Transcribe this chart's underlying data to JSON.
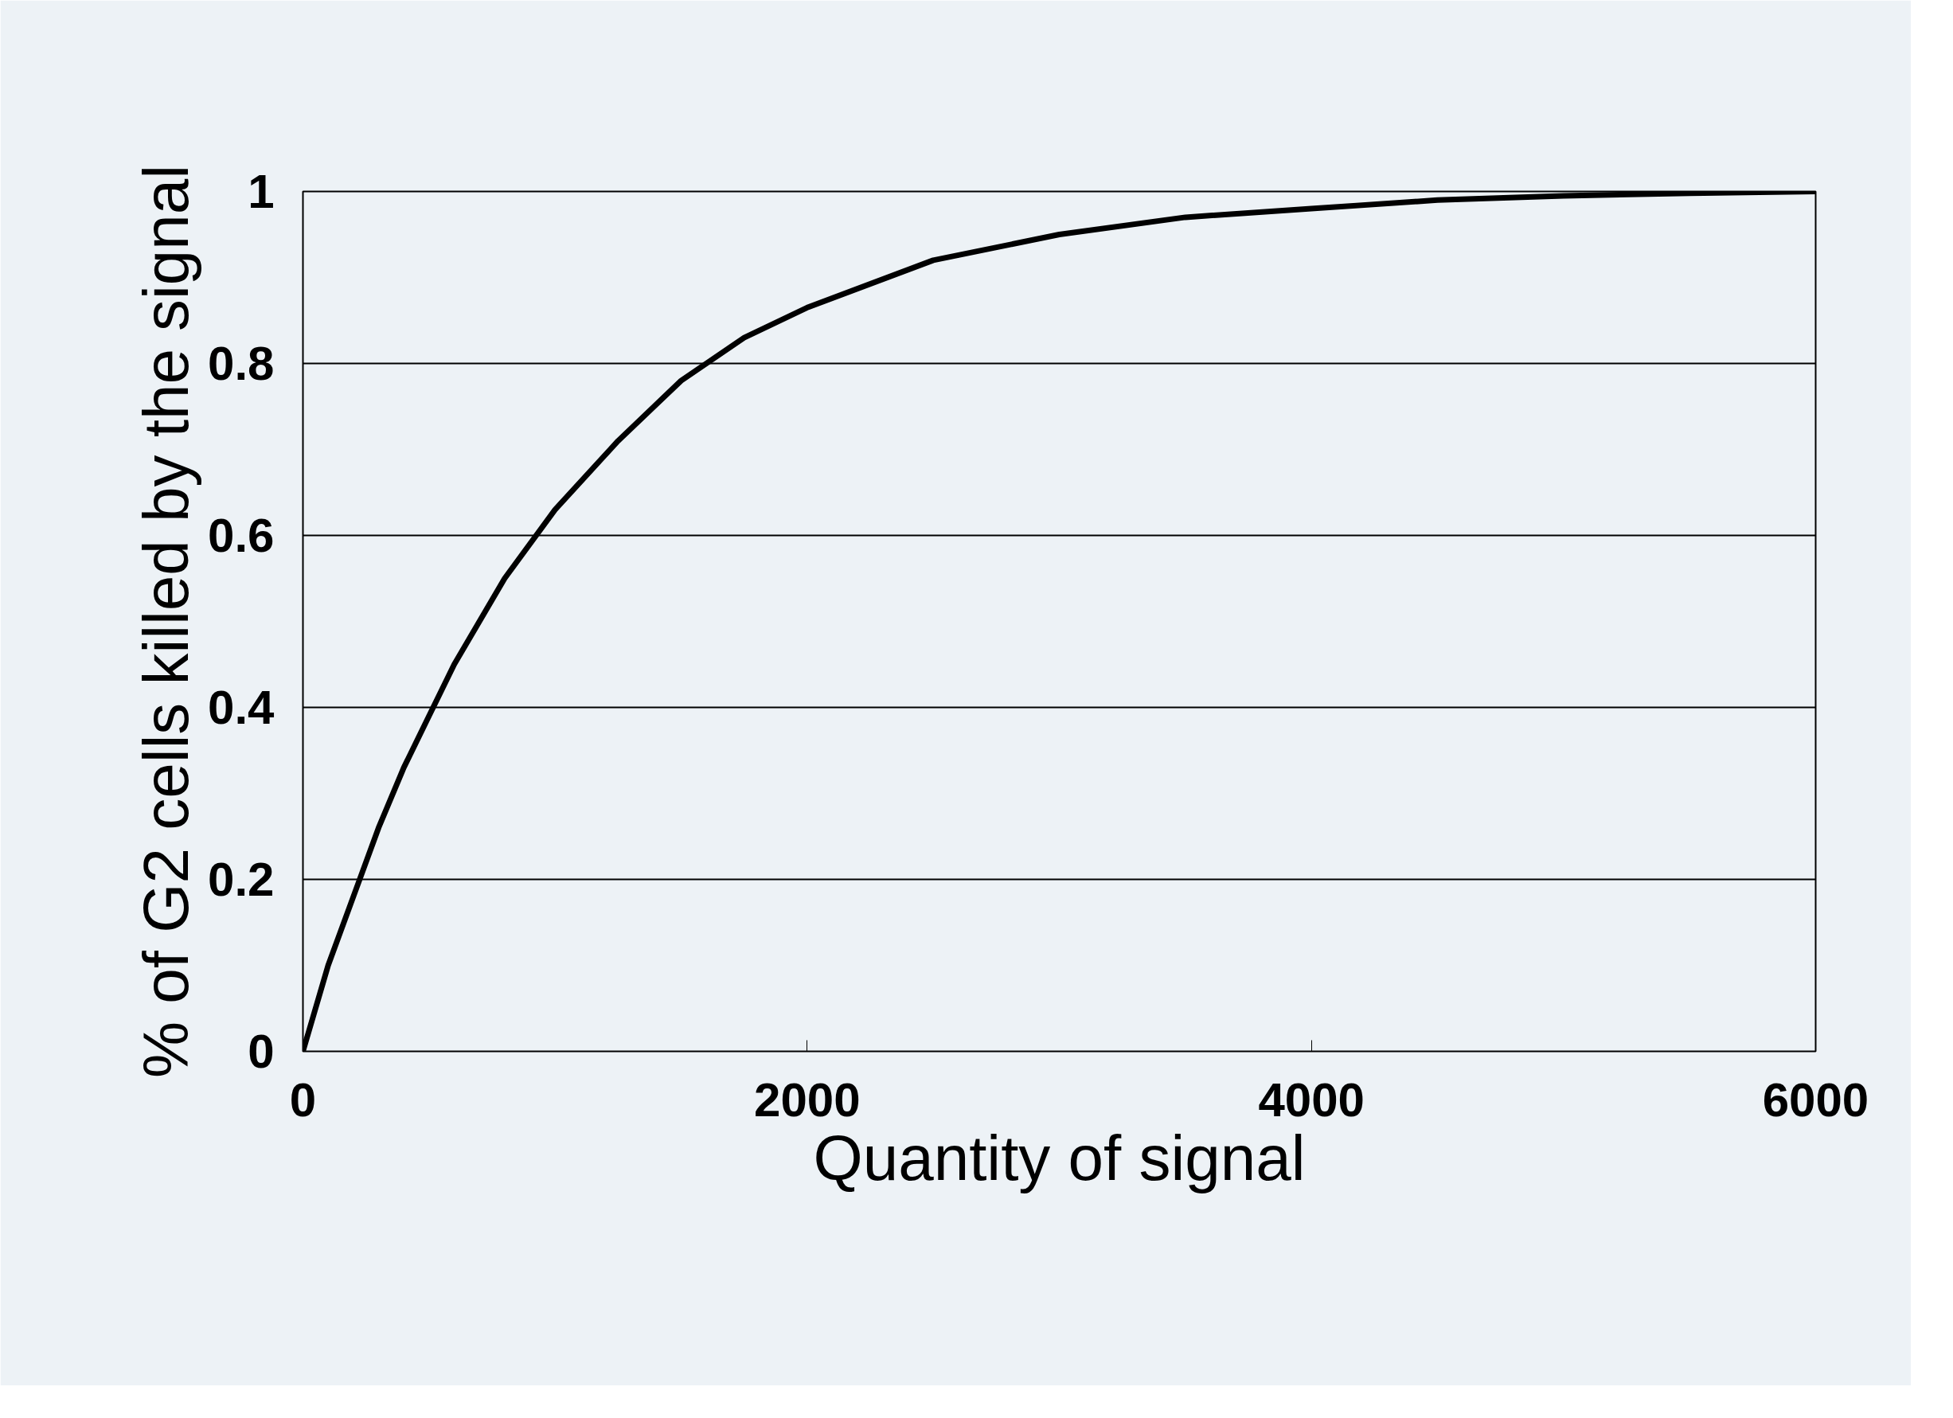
{
  "chart_data": {
    "type": "line",
    "xlabel": "Quantity of signal",
    "ylabel": "% of G2 cells killed by the signal",
    "x": [
      0,
      100,
      200,
      300,
      400,
      500,
      600,
      800,
      1000,
      1250,
      1500,
      1750,
      2000,
      2500,
      3000,
      3500,
      4000,
      4500,
      5000,
      5500,
      6000
    ],
    "series": [
      {
        "color": "#000000",
        "values": [
          0,
          0.1,
          0.18,
          0.26,
          0.33,
          0.39,
          0.45,
          0.55,
          0.63,
          0.71,
          0.78,
          0.83,
          0.865,
          0.92,
          0.95,
          0.97,
          0.98,
          0.99,
          0.995,
          0.998,
          1.0
        ]
      }
    ],
    "xlim": [
      0,
      6000
    ],
    "ylim": [
      0,
      1
    ],
    "xticks": [
      0,
      2000,
      4000,
      6000
    ],
    "yticks": [
      0,
      0.2,
      0.4,
      0.6,
      0.8,
      1
    ],
    "grid": "y",
    "marker": "none",
    "line_style": "solid"
  }
}
